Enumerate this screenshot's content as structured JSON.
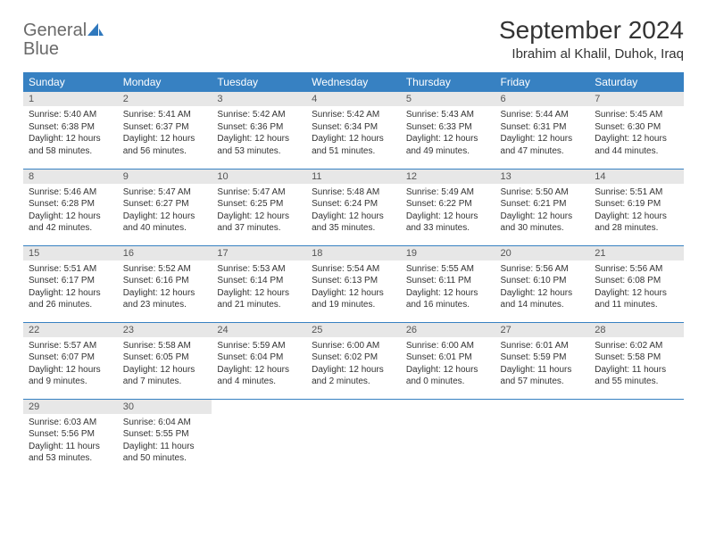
{
  "brand": {
    "part1": "General",
    "part2": "Blue"
  },
  "title": "September 2024",
  "location": "Ibrahim al Khalil, Duhok, Iraq",
  "colors": {
    "header_bg": "#3781c2",
    "header_text": "#ffffff",
    "daynum_bg": "#e7e7e7",
    "row_border": "#3781c2",
    "body_text": "#333333",
    "logo_gray": "#6a6a6a",
    "logo_blue": "#2f78bd",
    "page_bg": "#ffffff"
  },
  "typography": {
    "title_fontsize": 28,
    "location_fontsize": 15,
    "dayheader_fontsize": 12,
    "daynum_fontsize": 11,
    "body_fontsize": 10
  },
  "day_headers": [
    "Sunday",
    "Monday",
    "Tuesday",
    "Wednesday",
    "Thursday",
    "Friday",
    "Saturday"
  ],
  "weeks": [
    [
      {
        "n": "1",
        "sr": "Sunrise: 5:40 AM",
        "ss": "Sunset: 6:38 PM",
        "d1": "Daylight: 12 hours",
        "d2": "and 58 minutes."
      },
      {
        "n": "2",
        "sr": "Sunrise: 5:41 AM",
        "ss": "Sunset: 6:37 PM",
        "d1": "Daylight: 12 hours",
        "d2": "and 56 minutes."
      },
      {
        "n": "3",
        "sr": "Sunrise: 5:42 AM",
        "ss": "Sunset: 6:36 PM",
        "d1": "Daylight: 12 hours",
        "d2": "and 53 minutes."
      },
      {
        "n": "4",
        "sr": "Sunrise: 5:42 AM",
        "ss": "Sunset: 6:34 PM",
        "d1": "Daylight: 12 hours",
        "d2": "and 51 minutes."
      },
      {
        "n": "5",
        "sr": "Sunrise: 5:43 AM",
        "ss": "Sunset: 6:33 PM",
        "d1": "Daylight: 12 hours",
        "d2": "and 49 minutes."
      },
      {
        "n": "6",
        "sr": "Sunrise: 5:44 AM",
        "ss": "Sunset: 6:31 PM",
        "d1": "Daylight: 12 hours",
        "d2": "and 47 minutes."
      },
      {
        "n": "7",
        "sr": "Sunrise: 5:45 AM",
        "ss": "Sunset: 6:30 PM",
        "d1": "Daylight: 12 hours",
        "d2": "and 44 minutes."
      }
    ],
    [
      {
        "n": "8",
        "sr": "Sunrise: 5:46 AM",
        "ss": "Sunset: 6:28 PM",
        "d1": "Daylight: 12 hours",
        "d2": "and 42 minutes."
      },
      {
        "n": "9",
        "sr": "Sunrise: 5:47 AM",
        "ss": "Sunset: 6:27 PM",
        "d1": "Daylight: 12 hours",
        "d2": "and 40 minutes."
      },
      {
        "n": "10",
        "sr": "Sunrise: 5:47 AM",
        "ss": "Sunset: 6:25 PM",
        "d1": "Daylight: 12 hours",
        "d2": "and 37 minutes."
      },
      {
        "n": "11",
        "sr": "Sunrise: 5:48 AM",
        "ss": "Sunset: 6:24 PM",
        "d1": "Daylight: 12 hours",
        "d2": "and 35 minutes."
      },
      {
        "n": "12",
        "sr": "Sunrise: 5:49 AM",
        "ss": "Sunset: 6:22 PM",
        "d1": "Daylight: 12 hours",
        "d2": "and 33 minutes."
      },
      {
        "n": "13",
        "sr": "Sunrise: 5:50 AM",
        "ss": "Sunset: 6:21 PM",
        "d1": "Daylight: 12 hours",
        "d2": "and 30 minutes."
      },
      {
        "n": "14",
        "sr": "Sunrise: 5:51 AM",
        "ss": "Sunset: 6:19 PM",
        "d1": "Daylight: 12 hours",
        "d2": "and 28 minutes."
      }
    ],
    [
      {
        "n": "15",
        "sr": "Sunrise: 5:51 AM",
        "ss": "Sunset: 6:17 PM",
        "d1": "Daylight: 12 hours",
        "d2": "and 26 minutes."
      },
      {
        "n": "16",
        "sr": "Sunrise: 5:52 AM",
        "ss": "Sunset: 6:16 PM",
        "d1": "Daylight: 12 hours",
        "d2": "and 23 minutes."
      },
      {
        "n": "17",
        "sr": "Sunrise: 5:53 AM",
        "ss": "Sunset: 6:14 PM",
        "d1": "Daylight: 12 hours",
        "d2": "and 21 minutes."
      },
      {
        "n": "18",
        "sr": "Sunrise: 5:54 AM",
        "ss": "Sunset: 6:13 PM",
        "d1": "Daylight: 12 hours",
        "d2": "and 19 minutes."
      },
      {
        "n": "19",
        "sr": "Sunrise: 5:55 AM",
        "ss": "Sunset: 6:11 PM",
        "d1": "Daylight: 12 hours",
        "d2": "and 16 minutes."
      },
      {
        "n": "20",
        "sr": "Sunrise: 5:56 AM",
        "ss": "Sunset: 6:10 PM",
        "d1": "Daylight: 12 hours",
        "d2": "and 14 minutes."
      },
      {
        "n": "21",
        "sr": "Sunrise: 5:56 AM",
        "ss": "Sunset: 6:08 PM",
        "d1": "Daylight: 12 hours",
        "d2": "and 11 minutes."
      }
    ],
    [
      {
        "n": "22",
        "sr": "Sunrise: 5:57 AM",
        "ss": "Sunset: 6:07 PM",
        "d1": "Daylight: 12 hours",
        "d2": "and 9 minutes."
      },
      {
        "n": "23",
        "sr": "Sunrise: 5:58 AM",
        "ss": "Sunset: 6:05 PM",
        "d1": "Daylight: 12 hours",
        "d2": "and 7 minutes."
      },
      {
        "n": "24",
        "sr": "Sunrise: 5:59 AM",
        "ss": "Sunset: 6:04 PM",
        "d1": "Daylight: 12 hours",
        "d2": "and 4 minutes."
      },
      {
        "n": "25",
        "sr": "Sunrise: 6:00 AM",
        "ss": "Sunset: 6:02 PM",
        "d1": "Daylight: 12 hours",
        "d2": "and 2 minutes."
      },
      {
        "n": "26",
        "sr": "Sunrise: 6:00 AM",
        "ss": "Sunset: 6:01 PM",
        "d1": "Daylight: 12 hours",
        "d2": "and 0 minutes."
      },
      {
        "n": "27",
        "sr": "Sunrise: 6:01 AM",
        "ss": "Sunset: 5:59 PM",
        "d1": "Daylight: 11 hours",
        "d2": "and 57 minutes."
      },
      {
        "n": "28",
        "sr": "Sunrise: 6:02 AM",
        "ss": "Sunset: 5:58 PM",
        "d1": "Daylight: 11 hours",
        "d2": "and 55 minutes."
      }
    ],
    [
      {
        "n": "29",
        "sr": "Sunrise: 6:03 AM",
        "ss": "Sunset: 5:56 PM",
        "d1": "Daylight: 11 hours",
        "d2": "and 53 minutes."
      },
      {
        "n": "30",
        "sr": "Sunrise: 6:04 AM",
        "ss": "Sunset: 5:55 PM",
        "d1": "Daylight: 11 hours",
        "d2": "and 50 minutes."
      },
      null,
      null,
      null,
      null,
      null
    ]
  ]
}
